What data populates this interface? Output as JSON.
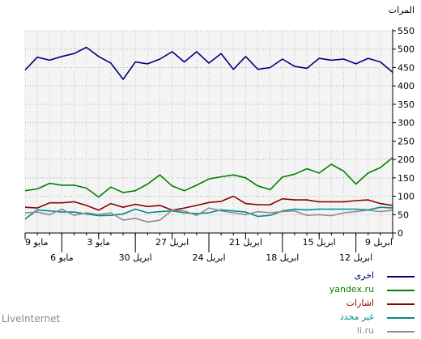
{
  "chart_data": {
    "type": "line",
    "ylabel": "المرات",
    "ylim": [
      0,
      550
    ],
    "yticks": [
      0,
      50,
      100,
      150,
      200,
      250,
      300,
      350,
      400,
      450,
      500,
      550
    ],
    "grid": true,
    "legend_position": "bottom-right",
    "top_tick_labels": [
      {
        "index": 0,
        "label": "9 مايو"
      },
      {
        "index": 6,
        "label": "3 مايو"
      },
      {
        "index": 12,
        "label": "27 ابريل"
      },
      {
        "index": 18,
        "label": "21 ابريل"
      },
      {
        "index": 24,
        "label": "15 ابريل"
      },
      {
        "index": 30,
        "label": "9 ابريل"
      }
    ],
    "bottom_tick_labels": [
      {
        "index": 3,
        "label": "6 مايو"
      },
      {
        "index": 9,
        "label": "30 ابريل"
      },
      {
        "index": 15,
        "label": "24 ابريل"
      },
      {
        "index": 21,
        "label": "18 ابريل"
      },
      {
        "index": 27,
        "label": "12 ابريل"
      }
    ],
    "series": [
      {
        "name": "اخرى",
        "color": "#00007f",
        "values": [
          443,
          478,
          470,
          480,
          488,
          505,
          480,
          462,
          418,
          465,
          460,
          473,
          493,
          465,
          493,
          462,
          488,
          445,
          480,
          445,
          450,
          473,
          453,
          448,
          475,
          470,
          473,
          460,
          475,
          465,
          437
        ]
      },
      {
        "name": "yandex.ru",
        "color": "#008000",
        "values": [
          115,
          120,
          135,
          130,
          130,
          122,
          98,
          125,
          110,
          115,
          133,
          158,
          128,
          115,
          130,
          147,
          153,
          158,
          150,
          128,
          118,
          152,
          160,
          175,
          163,
          187,
          168,
          133,
          163,
          178,
          205
        ]
      },
      {
        "name": "اشارات",
        "color": "#8b0000",
        "values": [
          70,
          68,
          82,
          82,
          85,
          75,
          62,
          80,
          70,
          78,
          72,
          75,
          62,
          68,
          75,
          83,
          86,
          100,
          80,
          77,
          77,
          93,
          90,
          90,
          85,
          85,
          85,
          88,
          90,
          80,
          75
        ]
      },
      {
        "name": "غير محدد",
        "color": "#008b8b",
        "values": [
          38,
          63,
          60,
          57,
          57,
          52,
          47,
          48,
          52,
          65,
          55,
          58,
          60,
          55,
          53,
          55,
          63,
          60,
          57,
          45,
          48,
          60,
          65,
          63,
          65,
          65,
          65,
          65,
          63,
          70,
          68
        ]
      },
      {
        "name": "li.ru",
        "color": "#8c8c8c",
        "values": [
          55,
          57,
          50,
          65,
          48,
          55,
          50,
          55,
          35,
          40,
          30,
          35,
          62,
          60,
          48,
          68,
          60,
          55,
          50,
          58,
          55,
          58,
          60,
          48,
          50,
          47,
          55,
          58,
          62,
          58,
          62
        ]
      }
    ]
  },
  "footer": {
    "brand": "LiveInternet"
  }
}
